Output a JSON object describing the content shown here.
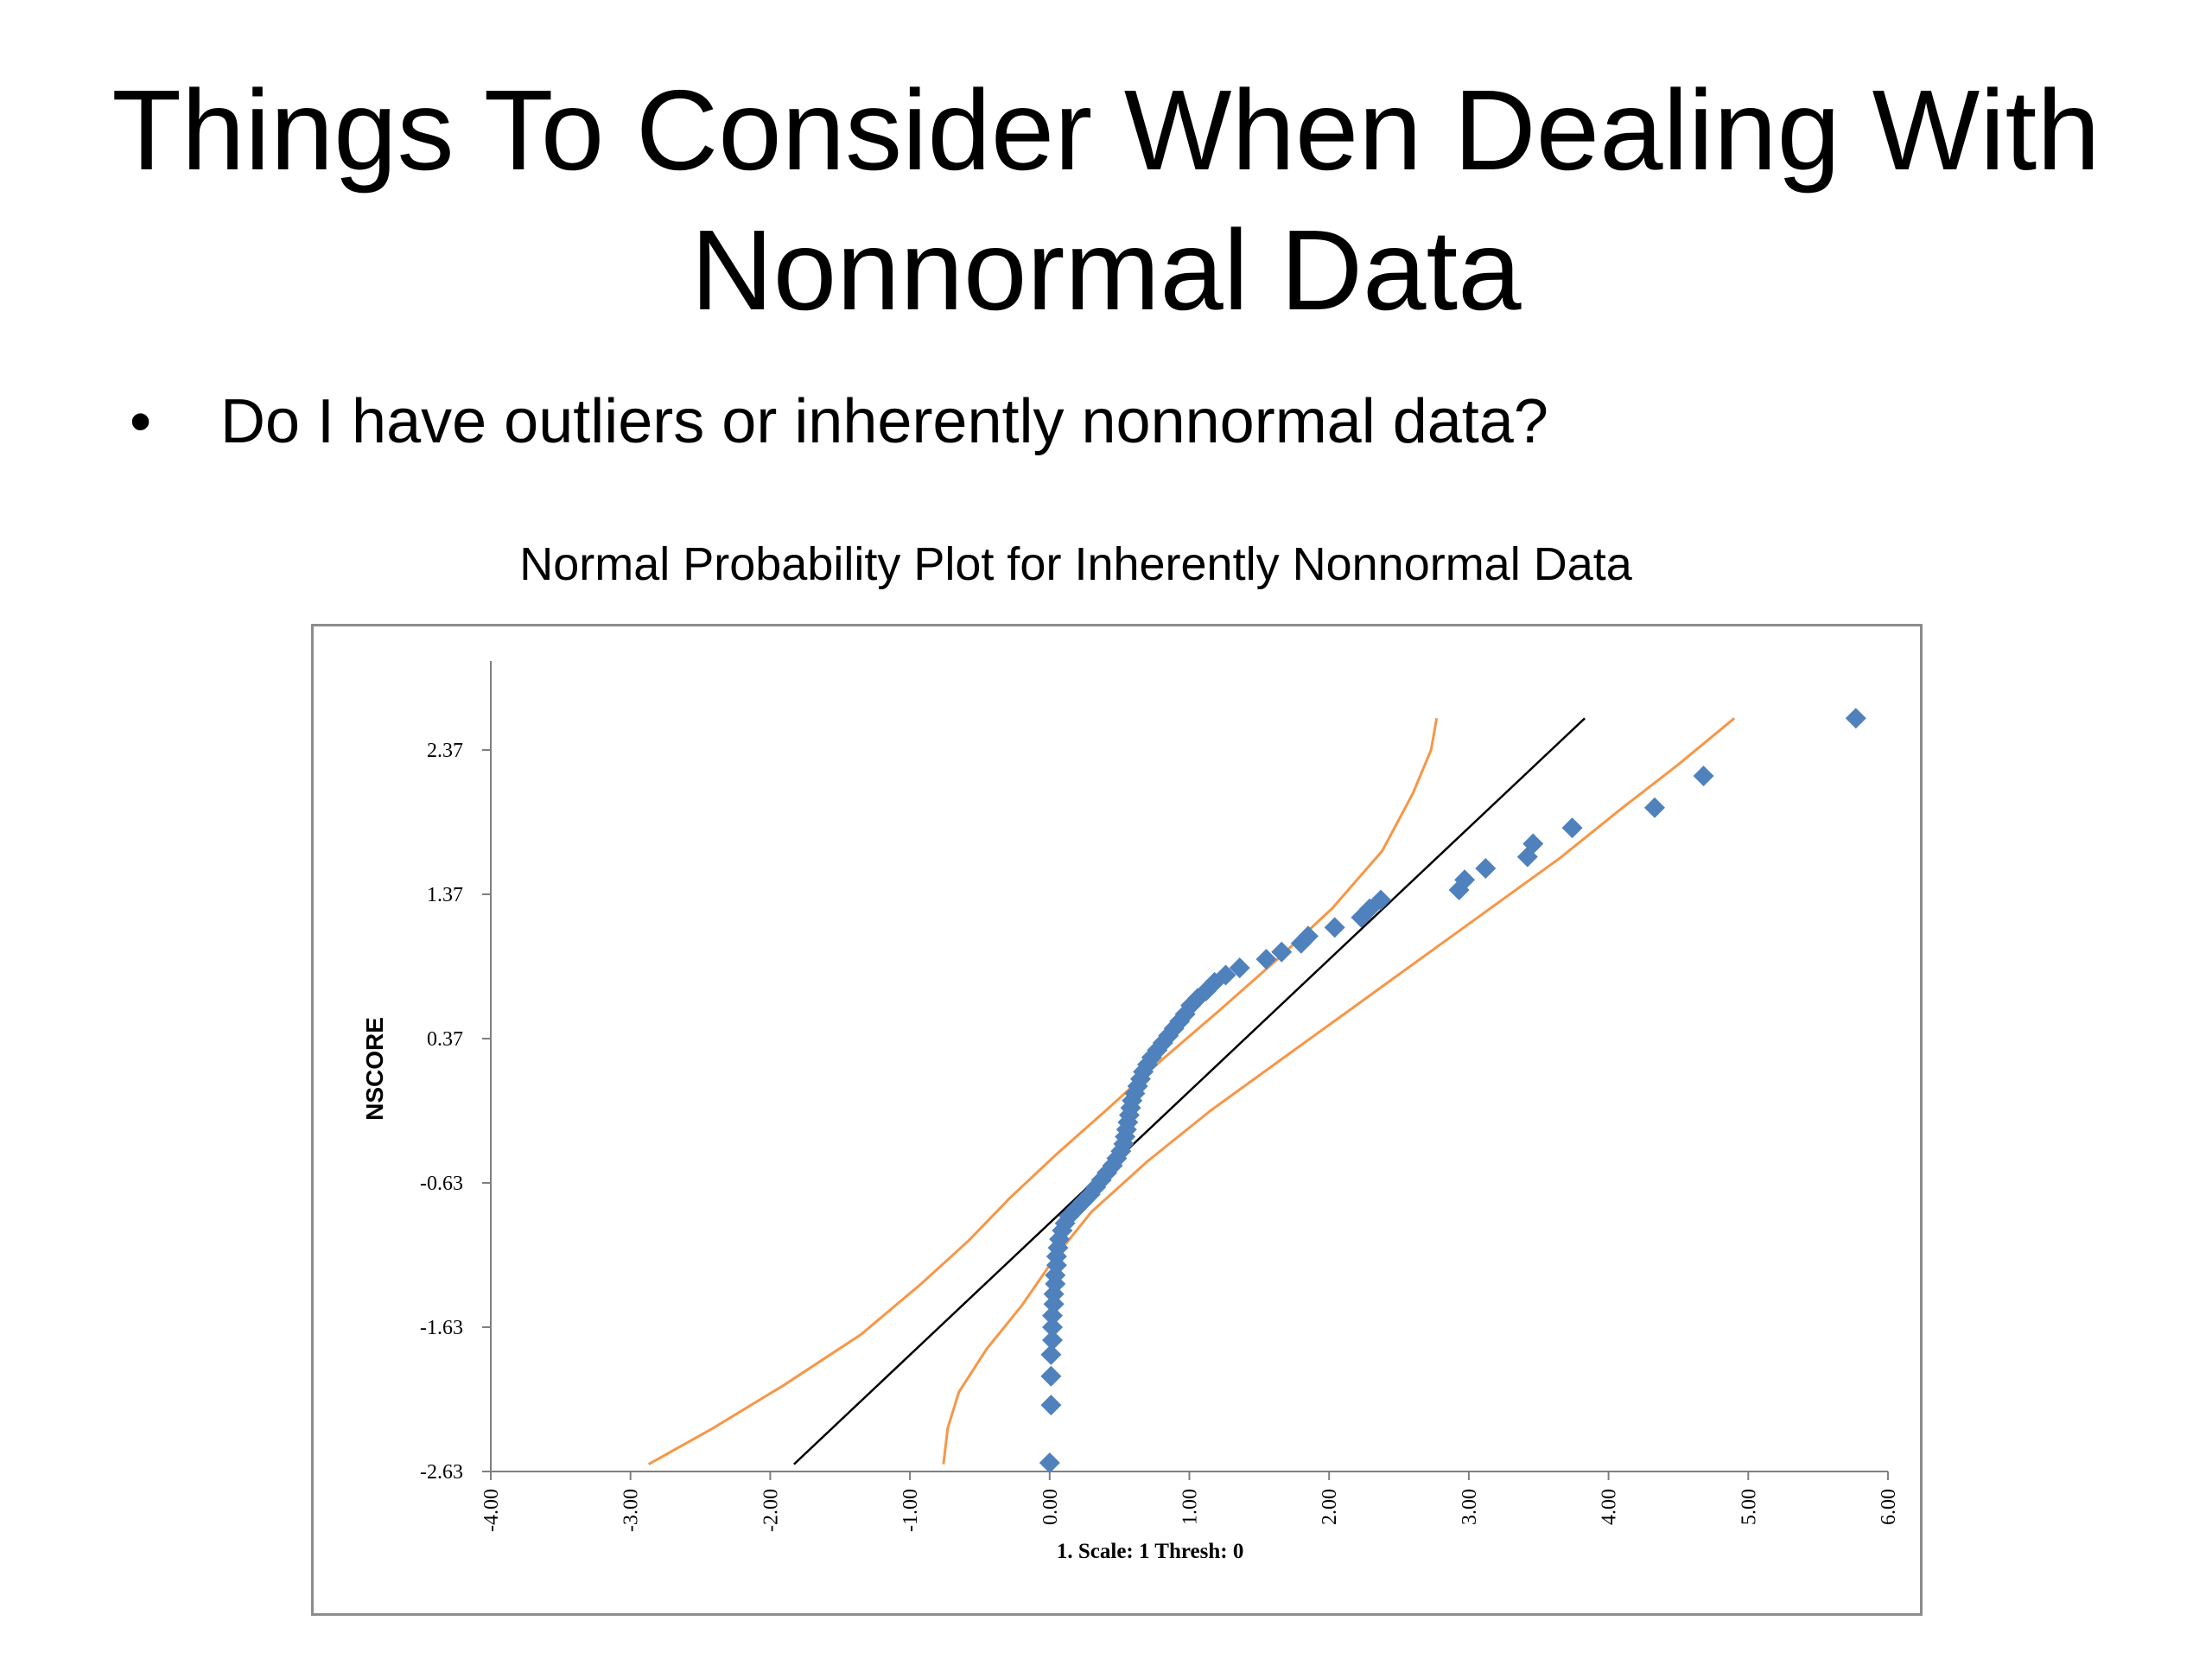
{
  "slide": {
    "title_line1": "Things To Consider When Dealing With",
    "title_line2": "Nonnormal Data",
    "bullet_symbol": "•",
    "bullet_text": "Do I have outliers or inherently nonnormal data?"
  },
  "colors": {
    "points": "#4F81BD",
    "confidence_bands": "#F79646",
    "fit_line": "#000000",
    "frame": "#8C8C8C",
    "axis": "#7F7F7F"
  },
  "chart_data": {
    "type": "scatter",
    "title": "Normal Probability Plot for Inherently Nonnormal Data",
    "xlabel": "",
    "ylabel": "NSCORE",
    "annotation": "1. Scale: 1 Thresh: 0",
    "xlim": [
      -4,
      6
    ],
    "ylim": [
      -2.63,
      3.0
    ],
    "x_ticks": [
      "-4.00",
      "-3.00",
      "-2.00",
      "-1.00",
      "0.00",
      "1.00",
      "2.00",
      "3.00",
      "4.00",
      "5.00",
      "6.00"
    ],
    "y_ticks": [
      "2.37",
      "1.37",
      "0.37",
      "-0.63",
      "-1.63",
      "-2.63"
    ],
    "grid": false,
    "legend": "none",
    "series": [
      {
        "role": "data points",
        "marker": "diamond",
        "points": [
          [
            0.0,
            -2.57
          ],
          [
            0.01,
            -2.17
          ],
          [
            0.01,
            -1.97
          ],
          [
            0.01,
            -1.82
          ],
          [
            0.02,
            -1.72
          ],
          [
            0.02,
            -1.63
          ],
          [
            0.02,
            -1.55
          ],
          [
            0.03,
            -1.47
          ],
          [
            0.03,
            -1.4
          ],
          [
            0.04,
            -1.33
          ],
          [
            0.04,
            -1.27
          ],
          [
            0.05,
            -1.2
          ],
          [
            0.05,
            -1.14
          ],
          [
            0.06,
            -1.08
          ],
          [
            0.07,
            -1.02
          ],
          [
            0.09,
            -0.96
          ],
          [
            0.11,
            -0.91
          ],
          [
            0.14,
            -0.86
          ],
          [
            0.19,
            -0.81
          ],
          [
            0.24,
            -0.76
          ],
          [
            0.29,
            -0.71
          ],
          [
            0.33,
            -0.66
          ],
          [
            0.37,
            -0.61
          ],
          [
            0.41,
            -0.56
          ],
          [
            0.45,
            -0.51
          ],
          [
            0.48,
            -0.46
          ],
          [
            0.51,
            -0.41
          ],
          [
            0.53,
            -0.36
          ],
          [
            0.54,
            -0.31
          ],
          [
            0.55,
            -0.26
          ],
          [
            0.56,
            -0.21
          ],
          [
            0.57,
            -0.16
          ],
          [
            0.58,
            -0.11
          ],
          [
            0.59,
            -0.06
          ],
          [
            0.61,
            -0.01
          ],
          [
            0.63,
            0.04
          ],
          [
            0.65,
            0.09
          ],
          [
            0.67,
            0.14
          ],
          [
            0.7,
            0.19
          ],
          [
            0.73,
            0.24
          ],
          [
            0.77,
            0.29
          ],
          [
            0.81,
            0.34
          ],
          [
            0.85,
            0.39
          ],
          [
            0.89,
            0.44
          ],
          [
            0.93,
            0.49
          ],
          [
            0.97,
            0.54
          ],
          [
            1.01,
            0.6
          ],
          [
            1.06,
            0.65
          ],
          [
            1.12,
            0.7
          ],
          [
            1.18,
            0.76
          ],
          [
            1.26,
            0.81
          ],
          [
            1.36,
            0.86
          ],
          [
            1.55,
            0.92
          ],
          [
            1.66,
            0.97
          ],
          [
            1.8,
            1.03
          ],
          [
            1.85,
            1.08
          ],
          [
            2.04,
            1.14
          ],
          [
            2.23,
            1.21
          ],
          [
            2.29,
            1.27
          ],
          [
            2.37,
            1.33
          ],
          [
            2.93,
            1.4
          ],
          [
            2.97,
            1.47
          ],
          [
            3.12,
            1.55
          ],
          [
            3.42,
            1.63
          ],
          [
            3.46,
            1.72
          ],
          [
            3.74,
            1.83
          ],
          [
            4.33,
            1.97
          ],
          [
            4.68,
            2.19
          ],
          [
            5.77,
            2.59
          ]
        ]
      },
      {
        "role": "fitted line",
        "points": [
          [
            -1.83,
            -2.58
          ],
          [
            3.83,
            2.59
          ]
        ]
      },
      {
        "role": "upper confidence band",
        "points": [
          [
            -2.87,
            -2.58
          ],
          [
            -2.41,
            -2.33
          ],
          [
            -1.9,
            -2.03
          ],
          [
            -1.35,
            -1.68
          ],
          [
            -0.92,
            -1.33
          ],
          [
            -0.58,
            -1.03
          ],
          [
            -0.28,
            -0.73
          ],
          [
            0.05,
            -0.43
          ],
          [
            0.4,
            -0.13
          ],
          [
            0.8,
            0.22
          ],
          [
            1.22,
            0.57
          ],
          [
            1.63,
            0.92
          ],
          [
            2.02,
            1.27
          ],
          [
            2.38,
            1.67
          ],
          [
            2.6,
            2.07
          ],
          [
            2.73,
            2.37
          ],
          [
            2.77,
            2.59
          ]
        ]
      },
      {
        "role": "lower confidence band",
        "points": [
          [
            -0.76,
            -2.58
          ],
          [
            -0.73,
            -2.33
          ],
          [
            -0.65,
            -2.08
          ],
          [
            -0.45,
            -1.78
          ],
          [
            -0.2,
            -1.48
          ],
          [
            0.05,
            -1.13
          ],
          [
            0.3,
            -0.83
          ],
          [
            0.7,
            -0.48
          ],
          [
            1.15,
            -0.13
          ],
          [
            1.65,
            0.22
          ],
          [
            2.15,
            0.57
          ],
          [
            2.65,
            0.92
          ],
          [
            3.15,
            1.27
          ],
          [
            3.65,
            1.62
          ],
          [
            4.1,
            1.97
          ],
          [
            4.5,
            2.27
          ],
          [
            4.9,
            2.59
          ]
        ]
      }
    ]
  }
}
